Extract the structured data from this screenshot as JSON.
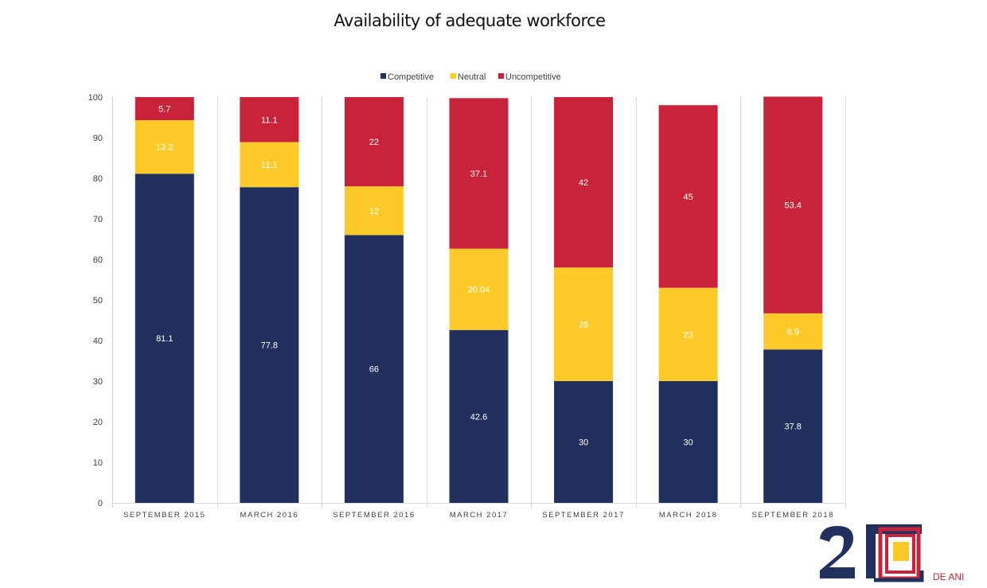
{
  "chart_data": {
    "type": "bar",
    "stacked": true,
    "title": "Availability of adequate workforce",
    "categories": [
      "SEPTEMBER 2015",
      "MARCH 2016",
      "SEPTEMBER 2016",
      "MARCH 2017",
      "SEPTEMBER 2017",
      "MARCH 2018",
      "SEPTEMBER 2018"
    ],
    "series": [
      {
        "name": "Competitive",
        "color": "#21305c",
        "values": [
          81.1,
          77.8,
          66,
          42.6,
          30,
          30,
          37.8
        ],
        "labels": [
          "81.1",
          "77.8",
          "66",
          "42.6",
          "30",
          "30",
          "37.8"
        ]
      },
      {
        "name": "Neutral",
        "color": "#fdca2a",
        "values": [
          13.2,
          11.1,
          12,
          20.04,
          28,
          23,
          8.9
        ],
        "labels": [
          "13.2",
          "11.1",
          "12",
          "20.04",
          "28",
          "23",
          "8.9"
        ]
      },
      {
        "name": "Uncompetitive",
        "color": "#c8233a",
        "values": [
          5.7,
          11.1,
          22,
          37.1,
          42,
          45,
          53.4
        ],
        "labels": [
          "5.7",
          "11.1",
          "22",
          "37.1",
          "42",
          "45",
          "53.4"
        ]
      }
    ],
    "yticks": [
      "0",
      "10",
      "20",
      "30",
      "40",
      "50",
      "60",
      "70",
      "80",
      "90",
      "100"
    ],
    "ylim": [
      0,
      100
    ],
    "xlabel": "",
    "ylabel": "",
    "legend_position": "top-center",
    "grid": "vertical-separators"
  },
  "logo": {
    "text": "DE ANI",
    "mark": "20-years-logo"
  }
}
